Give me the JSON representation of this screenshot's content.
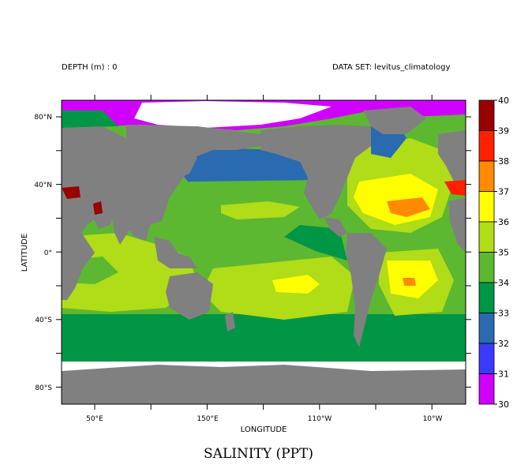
{
  "header": {
    "depth": "DEPTH (m) : 0",
    "dataset": "DATA SET: levitus_climatology"
  },
  "title": "SALINITY (PPT)",
  "axes": {
    "xlabel": "LONGITUDE",
    "ylabel": "LATITUDE",
    "xticks": [
      "50°E",
      "150°E",
      "110°W",
      "10°W"
    ],
    "yticks": [
      "80°N",
      "40°N",
      "0°",
      "40°S",
      "80°S"
    ]
  },
  "colorbar": {
    "labels": [
      "40",
      "39",
      "38",
      "37",
      "36",
      "35",
      "34",
      "33",
      "32",
      "31",
      "30"
    ],
    "colors": [
      "#9a0000",
      "#ff2000",
      "#ff8a00",
      "#ffff00",
      "#b0dc18",
      "#5cb830",
      "#009646",
      "#2a6ab0",
      "#3a3aff",
      "#d000ff"
    ]
  },
  "colors": {
    "land": "#808080",
    "nodata": "#ffffff"
  }
}
